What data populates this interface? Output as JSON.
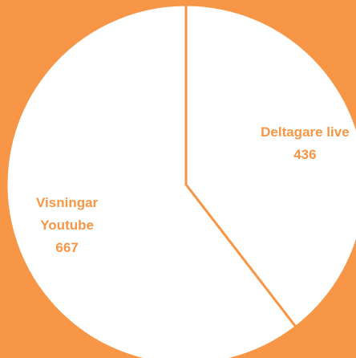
{
  "chart_data": {
    "type": "pie",
    "categories": [
      "Deltagare live",
      "Visningar Youtube"
    ],
    "values": [
      436,
      667
    ],
    "colors": [
      "#ffffff",
      "#ffffff"
    ],
    "background": "#f79646",
    "label_color": "#f79646",
    "edge_color": "#f79646"
  }
}
